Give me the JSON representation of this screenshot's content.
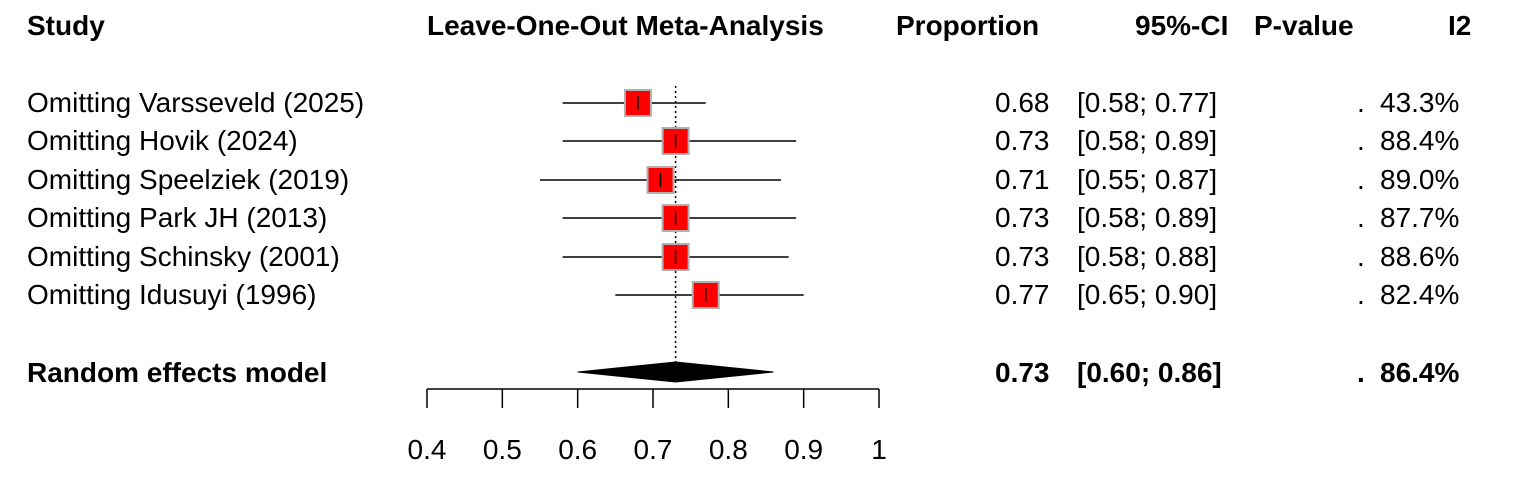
{
  "headers": {
    "study": "Study",
    "plot": "Leave-One-Out Meta-Analysis",
    "proportion": "Proportion",
    "ci": "95%-CI",
    "pvalue": "P-value",
    "i2": "I2"
  },
  "chart_data": {
    "type": "forest",
    "xlim": [
      0.4,
      1.0
    ],
    "ticks": [
      0.4,
      0.5,
      0.6,
      0.7,
      0.8,
      0.9,
      1.0
    ],
    "tick_labels": [
      "0.4",
      "0.5",
      "0.6",
      "0.7",
      "0.8",
      "0.9",
      "1"
    ],
    "reference_line": 0.73,
    "square_color": "#ff0000",
    "square_border": "#b0b0b0",
    "studies": [
      {
        "label": "Omitting Varsseveld (2025)",
        "estimate": 0.68,
        "lower": 0.58,
        "upper": 0.77,
        "proportion": "0.68",
        "ci": "[0.58; 0.77]",
        "pvalue": ".",
        "i2": "43.3%"
      },
      {
        "label": "Omitting Hovik (2024)",
        "estimate": 0.73,
        "lower": 0.58,
        "upper": 0.89,
        "proportion": "0.73",
        "ci": "[0.58; 0.89]",
        "pvalue": ".",
        "i2": "88.4%"
      },
      {
        "label": "Omitting Speelziek (2019)",
        "estimate": 0.71,
        "lower": 0.55,
        "upper": 0.87,
        "proportion": "0.71",
        "ci": "[0.55; 0.87]",
        "pvalue": ".",
        "i2": "89.0%"
      },
      {
        "label": "Omitting Park JH (2013)",
        "estimate": 0.73,
        "lower": 0.58,
        "upper": 0.89,
        "proportion": "0.73",
        "ci": "[0.58; 0.89]",
        "pvalue": ".",
        "i2": "87.7%"
      },
      {
        "label": "Omitting Schinsky (2001)",
        "estimate": 0.73,
        "lower": 0.58,
        "upper": 0.88,
        "proportion": "0.73",
        "ci": "[0.58; 0.88]",
        "pvalue": ".",
        "i2": "88.6%"
      },
      {
        "label": "Omitting Idusuyi (1996)",
        "estimate": 0.77,
        "lower": 0.65,
        "upper": 0.9,
        "proportion": "0.77",
        "ci": "[0.65; 0.90]",
        "pvalue": ".",
        "i2": "82.4%"
      }
    ],
    "summary": {
      "label": "Random effects model",
      "estimate": 0.73,
      "lower": 0.6,
      "upper": 0.86,
      "proportion": "0.73",
      "ci": "[0.60; 0.86]",
      "pvalue": ".",
      "i2": "86.4%"
    }
  }
}
